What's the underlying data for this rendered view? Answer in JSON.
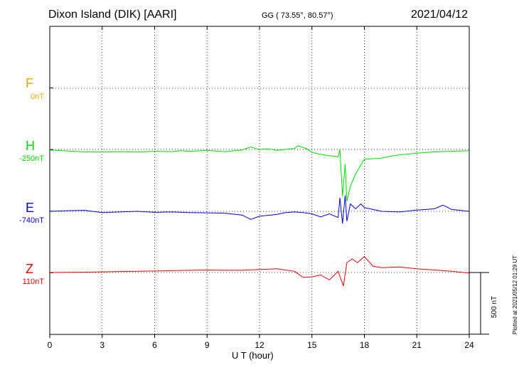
{
  "header": {
    "title": "Dixon Island (DIK)  [AARI]",
    "coordinates": "GG ( 73.55°,  80.57°)",
    "date": "2021/04/12"
  },
  "footer": {
    "plotted": "Plotted at 2021/05/12 01:29 UT",
    "scale_label": "500 nT"
  },
  "colors": {
    "F": "#f5a400",
    "H": "#00dd00",
    "E": "#0000dd",
    "Z": "#ee0000"
  },
  "chart_data": {
    "type": "line",
    "title": "Dixon Island (DIK)  [AARI]",
    "xlabel": "U T (hour)",
    "ylabel": "",
    "xlim": [
      0,
      24
    ],
    "x_ticks": [
      "0",
      "3",
      "6",
      "9",
      "12",
      "15",
      "18",
      "21",
      "24"
    ],
    "grid": true,
    "scale_bar_nT": 500,
    "channels": [
      {
        "name": "F",
        "offset_label": "0nT",
        "baseline_level": 3,
        "color": "#f5a400",
        "points": []
      },
      {
        "name": "H",
        "offset_label": "-250nT",
        "baseline_level": 2,
        "color": "#00dd00",
        "points": [
          [
            0,
            -5
          ],
          [
            1,
            -12
          ],
          [
            2,
            -20
          ],
          [
            3,
            -22
          ],
          [
            4,
            -18
          ],
          [
            5,
            -22
          ],
          [
            6,
            -15
          ],
          [
            7,
            -18
          ],
          [
            7.5,
            -10
          ],
          [
            8,
            -15
          ],
          [
            9,
            -8
          ],
          [
            10,
            -18
          ],
          [
            11,
            -5
          ],
          [
            11.5,
            20
          ],
          [
            12,
            -2
          ],
          [
            12.5,
            5
          ],
          [
            13,
            -8
          ],
          [
            13.5,
            0
          ],
          [
            14,
            8
          ],
          [
            14.2,
            30
          ],
          [
            14.7,
            5
          ],
          [
            15,
            -25
          ],
          [
            15.5,
            -40
          ],
          [
            16,
            -50
          ],
          [
            16.5,
            -60
          ],
          [
            16.6,
            0
          ],
          [
            16.75,
            -380
          ],
          [
            16.9,
            -120
          ],
          [
            17.0,
            -420
          ],
          [
            17.2,
            -300
          ],
          [
            17.5,
            -200
          ],
          [
            17.7,
            -150
          ],
          [
            18,
            -80
          ],
          [
            18.5,
            -75
          ],
          [
            19,
            -70
          ],
          [
            19.5,
            -55
          ],
          [
            20,
            -45
          ],
          [
            21,
            -30
          ],
          [
            22,
            -20
          ],
          [
            23,
            -15
          ],
          [
            24,
            -10
          ]
        ]
      },
      {
        "name": "E",
        "offset_label": "-740nT",
        "baseline_level": 1,
        "color": "#0000dd",
        "points": [
          [
            0,
            0
          ],
          [
            1,
            5
          ],
          [
            2,
            8
          ],
          [
            3,
            -10
          ],
          [
            4,
            -5
          ],
          [
            5,
            0
          ],
          [
            6,
            -8
          ],
          [
            7,
            -5
          ],
          [
            8,
            -10
          ],
          [
            9,
            -12
          ],
          [
            10,
            -15
          ],
          [
            11,
            -30
          ],
          [
            11.5,
            -65
          ],
          [
            12,
            -40
          ],
          [
            13,
            -25
          ],
          [
            13.5,
            -10
          ],
          [
            14,
            -5
          ],
          [
            14.5,
            -10
          ],
          [
            15,
            -20
          ],
          [
            15.5,
            -45
          ],
          [
            16,
            -20
          ],
          [
            16.5,
            -50
          ],
          [
            16.6,
            110
          ],
          [
            16.75,
            -100
          ],
          [
            16.9,
            130
          ],
          [
            17.0,
            -80
          ],
          [
            17.2,
            60
          ],
          [
            17.5,
            20
          ],
          [
            17.8,
            60
          ],
          [
            18,
            30
          ],
          [
            19,
            0
          ],
          [
            20,
            -5
          ],
          [
            21,
            10
          ],
          [
            22,
            20
          ],
          [
            22.5,
            50
          ],
          [
            23,
            15
          ],
          [
            24,
            0
          ]
        ]
      },
      {
        "name": "Z",
        "offset_label": "110nT",
        "baseline_level": 0,
        "color": "#ee0000",
        "points": [
          [
            0,
            0
          ],
          [
            1,
            2
          ],
          [
            2,
            3
          ],
          [
            3,
            5
          ],
          [
            4,
            8
          ],
          [
            5,
            10
          ],
          [
            6,
            12
          ],
          [
            7,
            15
          ],
          [
            8,
            18
          ],
          [
            9,
            20
          ],
          [
            10,
            18
          ],
          [
            11,
            18
          ],
          [
            12,
            25
          ],
          [
            13,
            30
          ],
          [
            14,
            10
          ],
          [
            14.5,
            -40
          ],
          [
            15,
            -35
          ],
          [
            15.5,
            -20
          ],
          [
            16,
            -60
          ],
          [
            16.5,
            10
          ],
          [
            16.8,
            -110
          ],
          [
            17,
            80
          ],
          [
            17.3,
            110
          ],
          [
            17.6,
            80
          ],
          [
            18,
            130
          ],
          [
            18.5,
            50
          ],
          [
            19,
            40
          ],
          [
            20,
            45
          ],
          [
            21,
            30
          ],
          [
            22,
            20
          ],
          [
            23,
            10
          ],
          [
            24,
            -5
          ]
        ]
      }
    ]
  }
}
